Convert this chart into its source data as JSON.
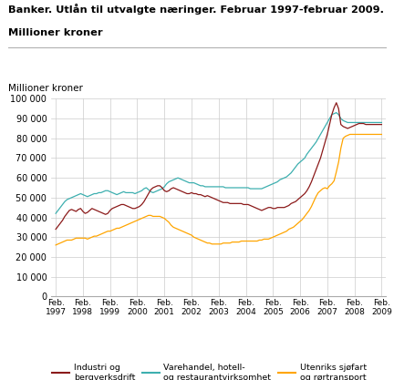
{
  "title_line1": "Banker. Utlån til utvalgte næringer. Februar 1997-februar 2009.",
  "title_line2": "Millioner kroner",
  "ylabel": "Millioner kroner",
  "ylim": [
    0,
    100000
  ],
  "yticks": [
    0,
    10000,
    20000,
    30000,
    40000,
    50000,
    60000,
    70000,
    80000,
    90000,
    100000
  ],
  "ytick_labels": [
    "0",
    "10 000",
    "20 000",
    "30 000",
    "40 000",
    "50 000",
    "60 000",
    "70 000",
    "80 000",
    "90 000",
    "100 000"
  ],
  "xtick_labels": [
    "Feb.\n1997",
    "Feb.\n1998",
    "Feb.\n1999",
    "Feb.\n2000",
    "Feb.\n2001",
    "Feb.\n2002",
    "Feb.\n2003",
    "Feb.\n2004",
    "Feb.\n2005",
    "Feb.\n2006",
    "Feb.\n2007",
    "Feb.\n2008",
    "Feb.\n2009"
  ],
  "color_industri": "#8B1A1A",
  "color_varehandel": "#3DAFAF",
  "color_utenriks": "#FFA500",
  "legend_labels": [
    "Industri og\nbergverksdrift",
    "Varehandel, hotell-\nog restaurantvirksomhet",
    "Utenriks sjøfart\nog rørtransport"
  ],
  "industri": [
    34000,
    35500,
    37000,
    38500,
    40500,
    42000,
    43500,
    44000,
    43500,
    43000,
    44000,
    44500,
    43000,
    42000,
    42500,
    43500,
    44500,
    44000,
    43500,
    43000,
    42500,
    42000,
    41500,
    42000,
    43500,
    44500,
    45000,
    45500,
    46000,
    46500,
    46500,
    46000,
    45500,
    45000,
    44500,
    44500,
    45000,
    45500,
    46500,
    48000,
    50000,
    52000,
    54000,
    55000,
    55500,
    56000,
    56000,
    55000,
    53500,
    53000,
    53500,
    54500,
    55000,
    54500,
    54000,
    53500,
    53000,
    52500,
    52000,
    52000,
    52500,
    52000,
    52000,
    51500,
    51500,
    51000,
    50500,
    51000,
    50500,
    50000,
    49500,
    49000,
    48500,
    48000,
    47500,
    47500,
    47500,
    47000,
    47000,
    47000,
    47000,
    47000,
    47000,
    46500,
    46500,
    46500,
    46000,
    45500,
    45000,
    44500,
    44000,
    43500,
    44000,
    44500,
    45000,
    45000,
    44500,
    44500,
    45000,
    45000,
    45000,
    45000,
    45500,
    46000,
    47000,
    47500,
    48000,
    49000,
    50000,
    51000,
    52000,
    53500,
    55500,
    58000,
    61000,
    64000,
    67000,
    70000,
    74000,
    78000,
    82000,
    87000,
    92000,
    95500,
    98000,
    95000,
    87000,
    86000,
    85500,
    85000,
    85500,
    86000,
    86500,
    87000,
    87500,
    87500,
    87500,
    87000,
    87000,
    87000,
    87000,
    87000,
    87000,
    87000,
    87000
  ],
  "varehandel": [
    42000,
    43500,
    45000,
    46500,
    48000,
    49000,
    49500,
    50000,
    50500,
    51000,
    51500,
    52000,
    51500,
    51000,
    50500,
    51000,
    51500,
    52000,
    52000,
    52500,
    52500,
    53000,
    53500,
    53500,
    53000,
    52500,
    52000,
    51500,
    52000,
    52500,
    53000,
    52500,
    52500,
    52500,
    52500,
    52000,
    52500,
    53000,
    53500,
    54500,
    55000,
    54000,
    53000,
    52500,
    53000,
    53500,
    54000,
    54500,
    55500,
    57000,
    58000,
    58500,
    59000,
    59500,
    60000,
    59500,
    59000,
    58500,
    58000,
    57500,
    57500,
    57500,
    57000,
    56500,
    56000,
    56000,
    55500,
    55500,
    55500,
    55500,
    55500,
    55500,
    55500,
    55500,
    55500,
    55000,
    55000,
    55000,
    55000,
    55000,
    55000,
    55000,
    55000,
    55000,
    55000,
    55000,
    54500,
    54500,
    54500,
    54500,
    54500,
    54500,
    55000,
    55500,
    56000,
    56500,
    57000,
    57500,
    58000,
    59000,
    59500,
    60000,
    60500,
    61500,
    62500,
    64000,
    65500,
    67000,
    68000,
    69000,
    70000,
    72000,
    73500,
    75000,
    76500,
    78000,
    80000,
    82000,
    84000,
    86000,
    88000,
    90000,
    92000,
    92500,
    93000,
    92000,
    90000,
    89000,
    88500,
    88000,
    88000,
    88000,
    88000,
    88000,
    88000,
    88000,
    88000,
    88000,
    88000,
    88000,
    88000,
    88000,
    88000,
    88000,
    88000
  ],
  "utenriks": [
    26000,
    26500,
    27000,
    27500,
    28000,
    28500,
    28500,
    28500,
    29000,
    29500,
    29500,
    29500,
    29500,
    29500,
    29000,
    29500,
    30000,
    30500,
    30500,
    31000,
    31500,
    32000,
    32500,
    33000,
    33000,
    33500,
    34000,
    34500,
    34500,
    35000,
    35500,
    36000,
    36500,
    37000,
    37500,
    38000,
    38500,
    39000,
    39500,
    40000,
    40500,
    41000,
    41000,
    40500,
    40500,
    40500,
    40500,
    40000,
    39500,
    38500,
    37500,
    36000,
    35000,
    34500,
    34000,
    33500,
    33000,
    32500,
    32000,
    31500,
    31000,
    30000,
    29500,
    29000,
    28500,
    28000,
    27500,
    27000,
    27000,
    26500,
    26500,
    26500,
    26500,
    26500,
    27000,
    27000,
    27000,
    27000,
    27500,
    27500,
    27500,
    27500,
    28000,
    28000,
    28000,
    28000,
    28000,
    28000,
    28000,
    28000,
    28500,
    28500,
    29000,
    29000,
    29000,
    29500,
    30000,
    30500,
    31000,
    31500,
    32000,
    32500,
    33000,
    34000,
    34500,
    35000,
    36000,
    37000,
    38000,
    39000,
    40500,
    42000,
    43500,
    45500,
    48000,
    50500,
    52500,
    53500,
    54500,
    55000,
    54500,
    56000,
    57000,
    58500,
    63000,
    68000,
    75000,
    80000,
    81000,
    81500,
    82000,
    82000,
    82000,
    82000,
    82000,
    82000,
    82000,
    82000,
    82000,
    82000,
    82000,
    82000,
    82000,
    82000,
    82000
  ]
}
